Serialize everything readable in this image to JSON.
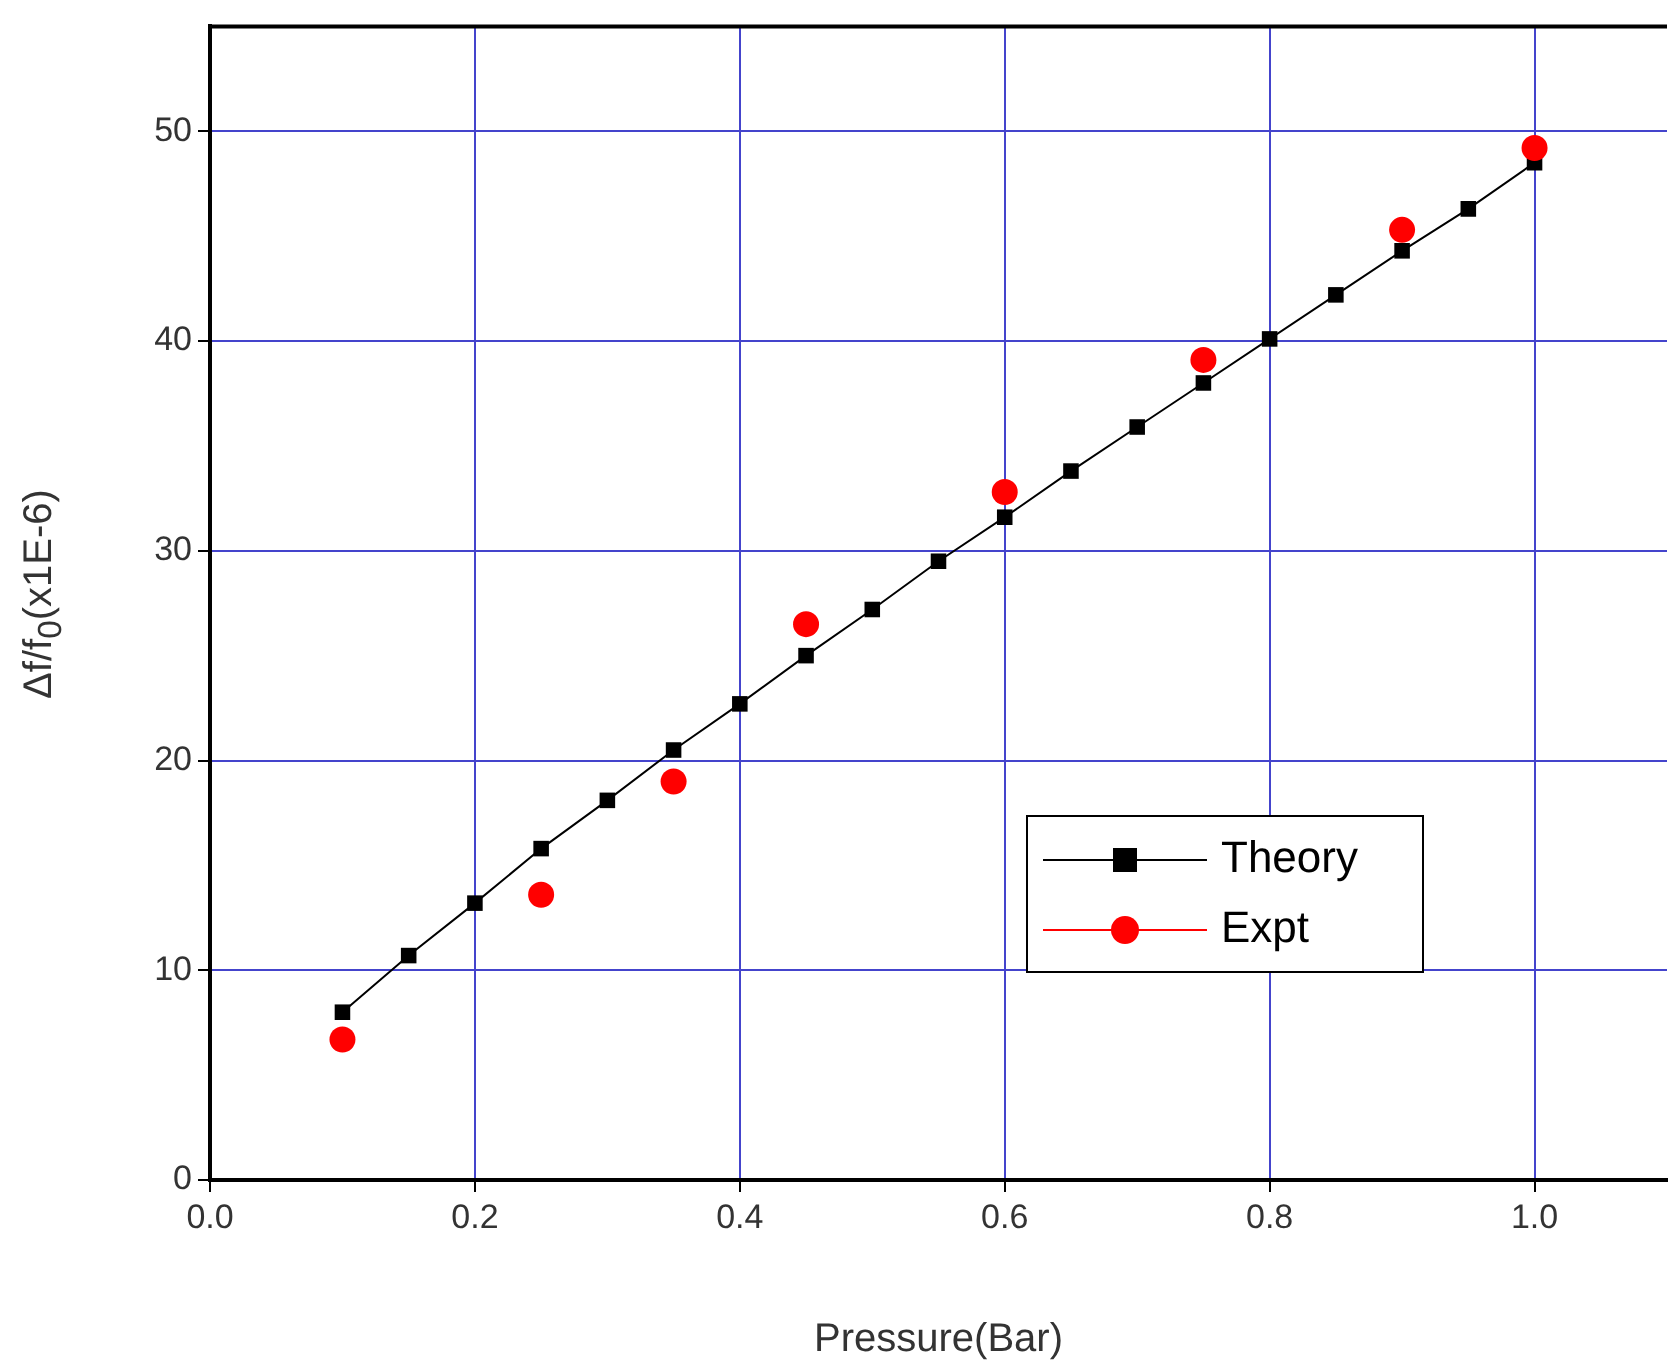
{
  "chart_data": {
    "type": "line",
    "xlabel": "Pressure(Bar)",
    "ylabel": "Δf/f$_{0}$(x1E-6)",
    "xlim": [
      0,
      1.1
    ],
    "xticks": [
      {
        "value": 0,
        "label": "0.0"
      },
      {
        "value": 0.2,
        "label": "0.2"
      },
      {
        "value": 0.4,
        "label": "0.4"
      },
      {
        "value": 0.6,
        "label": "0.6"
      },
      {
        "value": 0.8,
        "label": "0.8"
      },
      {
        "value": 1,
        "label": "1.0"
      }
    ],
    "ylim": [
      0,
      55
    ],
    "yticks": [
      0,
      10,
      20,
      30,
      40,
      50
    ],
    "grid": true,
    "legend": "bottom right",
    "series": [
      {
        "name": "Theory",
        "color": "#000000",
        "marker": "square",
        "line_style": "solid",
        "x": [
          0.1,
          0.15,
          0.2,
          0.25,
          0.3,
          0.35,
          0.4,
          0.45,
          0.5,
          0.55,
          0.6,
          0.65,
          0.7,
          0.75,
          0.8,
          0.85,
          0.9,
          0.95,
          1.0
        ],
        "values": [
          8.0,
          10.7,
          13.2,
          15.8,
          18.1,
          20.5,
          22.7,
          25.0,
          27.2,
          29.5,
          31.6,
          33.8,
          35.9,
          38.0,
          40.1,
          42.2,
          44.3,
          46.3,
          48.5
        ]
      },
      {
        "name": "Expt",
        "type": "scatter",
        "color": "#ff0000",
        "marker": "circle",
        "x": [
          0.1,
          0.25,
          0.35,
          0.45,
          0.6,
          0.75,
          0.9,
          1.0
        ],
        "values": [
          6.7,
          13.6,
          19.0,
          26.5,
          32.8,
          39.1,
          45.3,
          49.2
        ]
      }
    ]
  }
}
